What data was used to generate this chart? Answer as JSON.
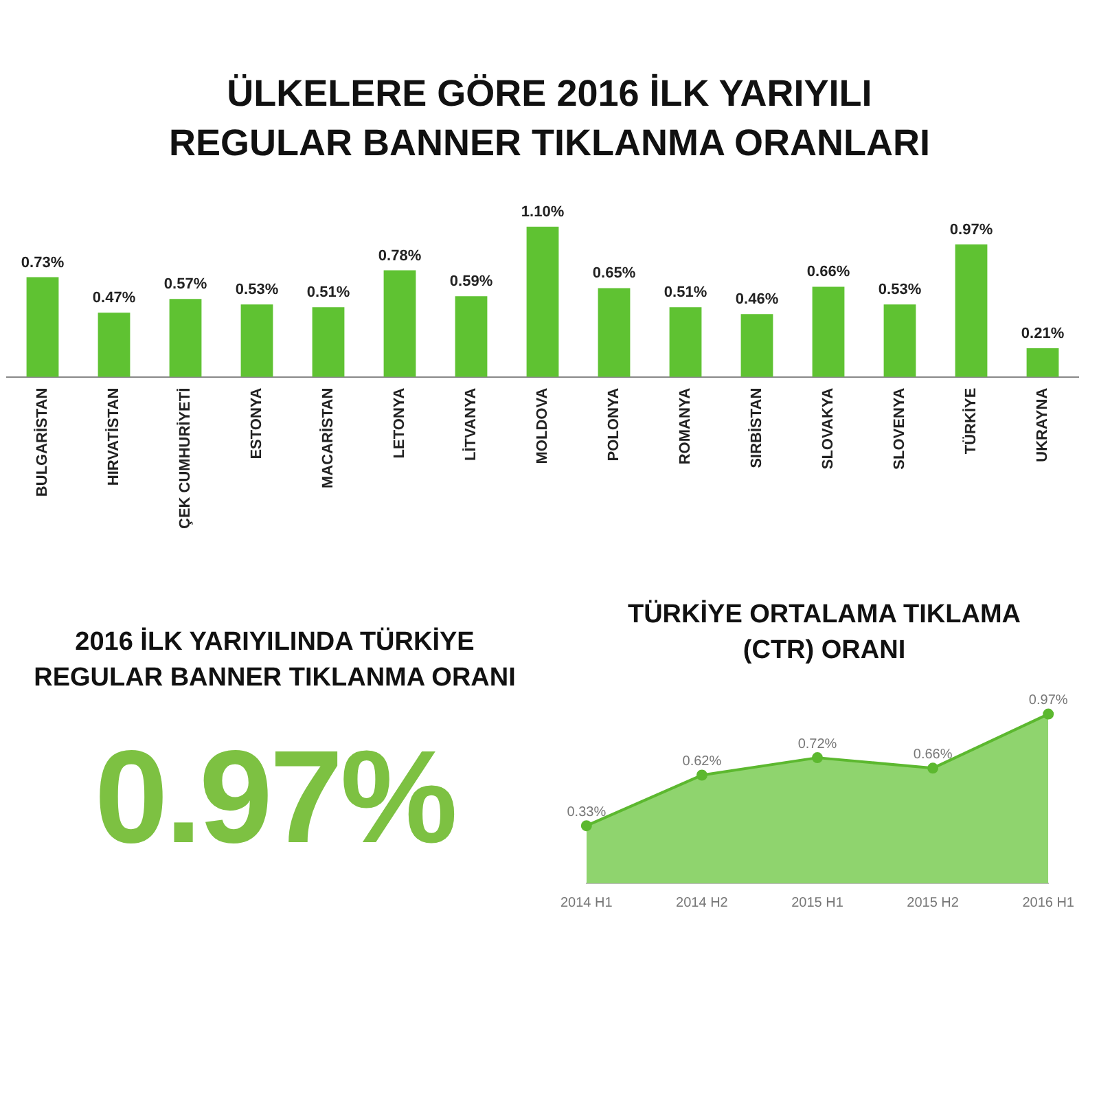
{
  "chart_data": [
    {
      "type": "bar",
      "title": "ÜLKELERE GÖRE 2016 İLK YARIYILI\nREGULAR BANNER TIKLANMA ORANLARI",
      "categories": [
        "BULGARİSTAN",
        "HIRVATİSTAN",
        "ÇEK CUMHURİYETİ",
        "ESTONYA",
        "MACARİSTAN",
        "LETONYA",
        "LİTVANYA",
        "MOLDOVA",
        "POLONYA",
        "ROMANYA",
        "SIRBİSTAN",
        "SLOVAKYA",
        "SLOVENYA",
        "TÜRKİYE",
        "UKRAYNA"
      ],
      "values": [
        0.73,
        0.47,
        0.57,
        0.53,
        0.51,
        0.78,
        0.59,
        1.1,
        0.65,
        0.51,
        0.46,
        0.66,
        0.53,
        0.97,
        0.21
      ],
      "value_labels": [
        "0.73%",
        "0.47%",
        "0.57%",
        "0.53%",
        "0.51%",
        "0.78%",
        "0.59%",
        "1.10%",
        "0.65%",
        "0.51%",
        "0.46%",
        "0.66%",
        "0.53%",
        "0.97%",
        "0.21%"
      ],
      "color": "#5fc232",
      "tick_labels": "x",
      "grid": false,
      "legend": false
    },
    {
      "type": "other",
      "title": "2016 İLK YARIYILINDA TÜRKİYE\nREGULAR BANNER TIKLANMA ORANI",
      "annotations": [
        "0.97%"
      ]
    },
    {
      "type": "area",
      "title": "TÜRKİYE ORTALAMA TIKLAMA\n(CTR) ORANI",
      "categories": [
        "2014 H1",
        "2014 H2",
        "2015 H1",
        "2015 H2",
        "2016 H1"
      ],
      "values": [
        0.33,
        0.62,
        0.72,
        0.66,
        0.97
      ],
      "value_labels": [
        "0.33%",
        "0.62%",
        "0.72%",
        "0.66%",
        "0.97%"
      ],
      "color": "#5cb82f",
      "marker": "circle",
      "tick_labels": "x",
      "grid": false,
      "legend": false
    }
  ]
}
